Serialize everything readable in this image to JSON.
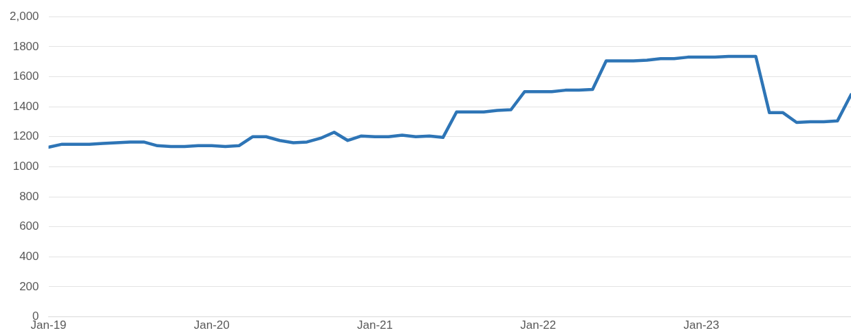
{
  "chart_data": {
    "type": "line",
    "x": [
      "2019-01",
      "2019-02",
      "2019-03",
      "2019-04",
      "2019-05",
      "2019-06",
      "2019-07",
      "2019-08",
      "2019-09",
      "2019-10",
      "2019-11",
      "2019-12",
      "2020-01",
      "2020-02",
      "2020-03",
      "2020-04",
      "2020-05",
      "2020-06",
      "2020-07",
      "2020-08",
      "2020-09",
      "2020-10",
      "2020-11",
      "2020-12",
      "2021-01",
      "2021-02",
      "2021-03",
      "2021-04",
      "2021-05",
      "2021-06",
      "2021-07",
      "2021-08",
      "2021-09",
      "2021-10",
      "2021-11",
      "2021-12",
      "2022-01",
      "2022-02",
      "2022-03",
      "2022-04",
      "2022-05",
      "2022-06",
      "2022-07",
      "2022-08",
      "2022-09",
      "2022-10",
      "2022-11",
      "2022-12",
      "2023-01",
      "2023-02",
      "2023-03",
      "2023-04",
      "2023-05",
      "2023-06",
      "2023-07",
      "2023-08",
      "2023-09",
      "2023-10",
      "2023-11",
      "2023-12"
    ],
    "series": [
      {
        "color": "#2e75b6",
        "values": [
          1130,
          1150,
          1150,
          1150,
          1155,
          1160,
          1165,
          1165,
          1140,
          1135,
          1135,
          1140,
          1140,
          1135,
          1140,
          1200,
          1200,
          1175,
          1160,
          1165,
          1190,
          1230,
          1175,
          1205,
          1200,
          1200,
          1210,
          1200,
          1205,
          1195,
          1365,
          1365,
          1365,
          1375,
          1380,
          1500,
          1500,
          1500,
          1510,
          1510,
          1515,
          1705,
          1705,
          1705,
          1710,
          1720,
          1720,
          1730,
          1730,
          1730,
          1735,
          1735,
          1735,
          1360,
          1360,
          1295,
          1300,
          1300,
          1305,
          1480
        ]
      }
    ],
    "xlim": [
      "2019-01",
      "2023-12"
    ],
    "xticks": [
      {
        "value": "2019-01",
        "label": "Jan-19"
      },
      {
        "value": "2020-01",
        "label": "Jan-20"
      },
      {
        "value": "2021-01",
        "label": "Jan-21"
      },
      {
        "value": "2022-01",
        "label": "Jan-22"
      },
      {
        "value": "2023-01",
        "label": "Jan-23"
      }
    ],
    "ylim": [
      0,
      2000
    ],
    "yticks": [
      0,
      200,
      400,
      600,
      800,
      1000,
      1200,
      1400,
      1600,
      1800,
      {
        "value": 2000,
        "label": "2,000"
      }
    ],
    "grid": "y",
    "marker": "none",
    "line_style": "solid",
    "legend": false
  }
}
